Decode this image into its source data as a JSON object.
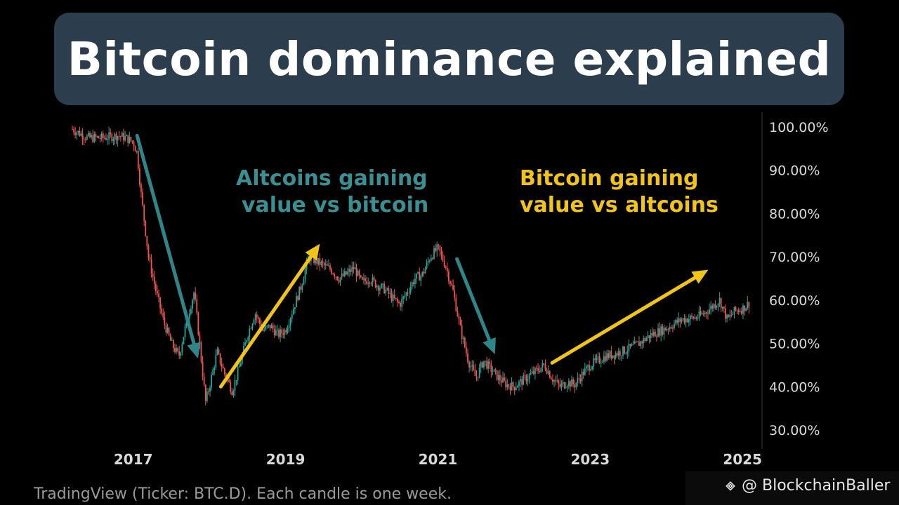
{
  "title": "Bitcoin dominance explained",
  "annotations": {
    "altcoins_line1": "Altcoins gaining",
    "altcoins_line2": "value vs bitcoin",
    "bitcoin_line1": "Bitcoin gaining",
    "bitcoin_line2": "value vs altcoins"
  },
  "footer": "TradingView (Ticker: BTC.D). Each candle is one week.",
  "watermark": {
    "handle": "@ BlockchainBaller",
    "icon": "binance-diamond-icon"
  },
  "colors": {
    "background": "#000000",
    "title_box": "#2c3e4e",
    "candle_up": "#26a69a",
    "candle_down": "#ef5350",
    "teal_arrow": "#2f8688",
    "yellow_arrow": "#f2c418",
    "axis_text": "#d9d9d9"
  },
  "chart_data": {
    "type": "line",
    "title": "",
    "xlabel": "",
    "ylabel": "",
    "y_unit": "%",
    "ylim": [
      30,
      100
    ],
    "xlim": [
      2016.2,
      2025.1
    ],
    "yticks": [
      "30.00%",
      "40.00%",
      "50.00%",
      "60.00%",
      "70.00%",
      "80.00%",
      "90.00%",
      "100.00%"
    ],
    "ytick_values": [
      30,
      40,
      50,
      60,
      70,
      80,
      90,
      100
    ],
    "xticks": [
      "2017",
      "2019",
      "2021",
      "2023",
      "2025"
    ],
    "xtick_values": [
      2017,
      2019,
      2021,
      2023,
      2025
    ],
    "grid": false,
    "series": [
      {
        "x": [
          2016.2,
          2016.4,
          2016.6,
          2016.8,
          2016.9,
          2017.0,
          2017.05,
          2017.1,
          2017.2,
          2017.3,
          2017.4,
          2017.5,
          2017.6,
          2017.7,
          2017.8,
          2017.9,
          2017.95,
          2018.0,
          2018.1,
          2018.2,
          2018.3,
          2018.4,
          2018.5,
          2018.6,
          2018.7,
          2018.8,
          2018.9,
          2019.0,
          2019.1,
          2019.2,
          2019.3,
          2019.4,
          2019.5,
          2019.6,
          2019.7,
          2019.8,
          2019.9,
          2020.0,
          2020.1,
          2020.2,
          2020.3,
          2020.4,
          2020.5,
          2020.6,
          2020.7,
          2020.8,
          2020.9,
          2021.0,
          2021.1,
          2021.2,
          2021.3,
          2021.4,
          2021.5,
          2021.6,
          2021.7,
          2021.8,
          2021.9,
          2022.0,
          2022.2,
          2022.4,
          2022.5,
          2022.6,
          2022.7,
          2022.8,
          2022.9,
          2023.0,
          2023.2,
          2023.4,
          2023.6,
          2023.8,
          2024.0,
          2024.2,
          2024.4,
          2024.5,
          2024.6,
          2024.7,
          2024.8,
          2024.9,
          2025.0,
          2025.1
        ],
        "y": [
          99.5,
          97.5,
          97.5,
          98.0,
          97.5,
          96.5,
          94.0,
          85.0,
          70.0,
          62.0,
          55.0,
          50.0,
          47.0,
          55.0,
          62.0,
          45.0,
          36.5,
          40.0,
          48.0,
          43.0,
          39.0,
          45.0,
          52.0,
          57.0,
          53.0,
          54.0,
          52.0,
          53.0,
          58.0,
          63.0,
          70.0,
          69.0,
          68.0,
          67.0,
          65.0,
          66.0,
          67.5,
          64.0,
          65.0,
          63.5,
          62.5,
          60.5,
          59.0,
          62.0,
          65.0,
          66.0,
          70.0,
          72.0,
          68.0,
          62.0,
          53.0,
          46.0,
          42.0,
          46.0,
          44.0,
          42.0,
          40.5,
          40.0,
          42.5,
          45.0,
          42.0,
          40.0,
          41.0,
          40.5,
          43.0,
          45.0,
          47.0,
          48.0,
          49.5,
          52.0,
          53.5,
          55.5,
          56.0,
          57.0,
          58.5,
          60.0,
          55.5,
          57.5,
          58.0,
          59.5
        ]
      }
    ],
    "arrows": [
      {
        "color": "teal",
        "from": [
          2017.05,
          98.0
        ],
        "to": [
          2017.85,
          46.5
        ]
      },
      {
        "color": "yellow",
        "from": [
          2018.15,
          40.0
        ],
        "to": [
          2019.45,
          73.0
        ]
      },
      {
        "color": "teal",
        "from": [
          2021.25,
          69.5
        ],
        "to": [
          2021.75,
          47.5
        ]
      },
      {
        "color": "yellow",
        "from": [
          2022.5,
          45.5
        ],
        "to": [
          2024.55,
          67.0
        ]
      }
    ]
  }
}
